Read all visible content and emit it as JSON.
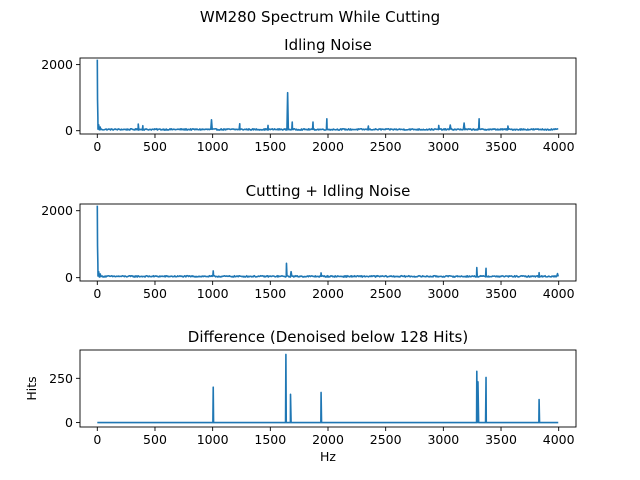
{
  "figure": {
    "suptitle": "WM280 Spectrum While Cutting",
    "line_color": "#1f77b4"
  },
  "chart_data": [
    {
      "type": "line",
      "title": "Idling Noise",
      "xlabel": "",
      "ylabel": "",
      "xlim": [
        -150,
        4150
      ],
      "ylim": [
        -100,
        2200
      ],
      "xticks": [
        0,
        500,
        1000,
        1500,
        2000,
        2500,
        3000,
        3500,
        4000
      ],
      "yticks": [
        0,
        2000
      ],
      "noise_floor": 40,
      "peaks": [
        {
          "x": 0,
          "y": 2150
        },
        {
          "x": 2,
          "y": 950
        },
        {
          "x": 5,
          "y": 400
        },
        {
          "x": 12,
          "y": 180
        },
        {
          "x": 25,
          "y": 110
        },
        {
          "x": 355,
          "y": 200
        },
        {
          "x": 395,
          "y": 150
        },
        {
          "x": 990,
          "y": 330
        },
        {
          "x": 1235,
          "y": 210
        },
        {
          "x": 1480,
          "y": 160
        },
        {
          "x": 1650,
          "y": 1150
        },
        {
          "x": 1690,
          "y": 260
        },
        {
          "x": 1870,
          "y": 260
        },
        {
          "x": 1990,
          "y": 360
        },
        {
          "x": 2350,
          "y": 140
        },
        {
          "x": 2960,
          "y": 160
        },
        {
          "x": 3060,
          "y": 170
        },
        {
          "x": 3180,
          "y": 230
        },
        {
          "x": 3310,
          "y": 360
        },
        {
          "x": 3560,
          "y": 140
        }
      ]
    },
    {
      "type": "line",
      "title": "Cutting + Idling Noise",
      "xlabel": "",
      "ylabel": "",
      "xlim": [
        -150,
        4150
      ],
      "ylim": [
        -100,
        2200
      ],
      "xticks": [
        0,
        500,
        1000,
        1500,
        2000,
        2500,
        3000,
        3500,
        4000
      ],
      "yticks": [
        0,
        2000
      ],
      "noise_floor": 40,
      "peaks": [
        {
          "x": 0,
          "y": 2150
        },
        {
          "x": 2,
          "y": 950
        },
        {
          "x": 5,
          "y": 400
        },
        {
          "x": 12,
          "y": 180
        },
        {
          "x": 25,
          "y": 110
        },
        {
          "x": 1005,
          "y": 200
        },
        {
          "x": 1640,
          "y": 430
        },
        {
          "x": 1680,
          "y": 180
        },
        {
          "x": 1940,
          "y": 140
        },
        {
          "x": 3290,
          "y": 300
        },
        {
          "x": 3370,
          "y": 280
        },
        {
          "x": 3830,
          "y": 150
        },
        {
          "x": 3990,
          "y": 120
        }
      ]
    },
    {
      "type": "line",
      "title": "Difference (Denoised below 128 Hits)",
      "xlabel": "Hz",
      "ylabel": "Hits",
      "xlim": [
        -150,
        4150
      ],
      "ylim": [
        -25,
        410
      ],
      "xticks": [
        0,
        500,
        1000,
        1500,
        2000,
        2500,
        3000,
        3500,
        4000
      ],
      "yticks": [
        0,
        250
      ],
      "noise_floor": 0,
      "peaks": [
        {
          "x": 1005,
          "y": 200
        },
        {
          "x": 1635,
          "y": 385
        },
        {
          "x": 1675,
          "y": 160
        },
        {
          "x": 1940,
          "y": 170
        },
        {
          "x": 3290,
          "y": 290
        },
        {
          "x": 3300,
          "y": 230
        },
        {
          "x": 3370,
          "y": 255
        },
        {
          "x": 3830,
          "y": 130
        }
      ]
    }
  ]
}
